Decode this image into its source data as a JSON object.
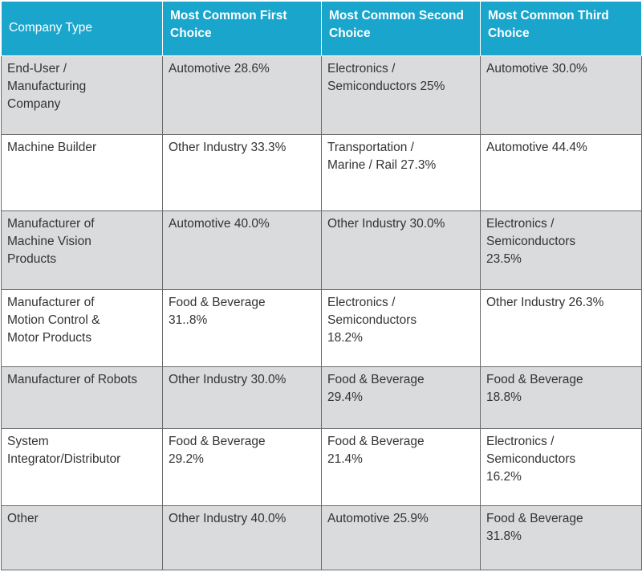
{
  "headers": [
    "Company Type",
    "Most Common First\nChoice",
    "Most Common Second\nChoice",
    "Most Common Third\nChoice"
  ],
  "rows": [
    [
      "End-User /\nManufacturing\nCompany",
      "Automotive 28.6%",
      "Electronics /\nSemiconductors 25%",
      "Automotive 30.0%"
    ],
    [
      "Machine Builder",
      "Other Industry 33.3%",
      "Transportation /\nMarine / Rail 27.3%",
      "Automotive 44.4%"
    ],
    [
      "Manufacturer of\nMachine Vision\nProducts",
      "Automotive 40.0%",
      "Other Industry 30.0%",
      "Electronics /\nSemiconductors\n23.5%"
    ],
    [
      "Manufacturer of\nMotion Control &\nMotor Products",
      "Food & Beverage\n31..8%",
      "Electronics /\nSemiconductors\n18.2%",
      "Other Industry 26.3%"
    ],
    [
      "Manufacturer of Robots",
      "Other Industry 30.0%",
      "Food & Beverage\n29.4%",
      "Food & Beverage\n18.8%"
    ],
    [
      "System\nIntegrator/Distributor",
      "Food & Beverage\n29.2%",
      "Food & Beverage\n21.4%",
      "Electronics /\nSemiconductors\n16.2%"
    ],
    [
      "Other",
      "Other Industry 40.0%",
      "Automotive 25.9%",
      "Food & Beverage\n31.8%"
    ]
  ],
  "colors": {
    "header_bg": "#1aa6cc",
    "header_text": "#ffffff",
    "row_shade": "#d9dbdd",
    "row_plain": "#ffffff",
    "border": "#6a6a6a"
  }
}
